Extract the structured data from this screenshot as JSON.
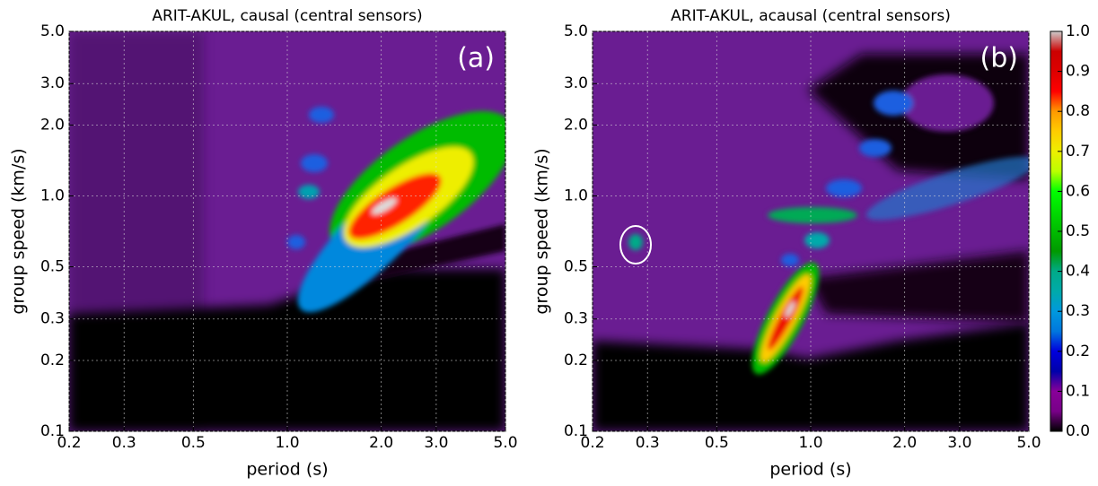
{
  "chart_data": [
    {
      "type": "heatmap",
      "title": "ARIT-AKUL, causal (central sensors)",
      "panel_label": "(a)",
      "xlabel": "period (s)",
      "ylabel": "group speed (km/s)",
      "xscale": "log",
      "yscale": "log",
      "grid": true,
      "xlim": [
        0.2,
        5.0
      ],
      "ylim": [
        0.1,
        5.0
      ],
      "xticks": [
        0.2,
        0.3,
        0.5,
        {
          "value": 1,
          "label": "1.0"
        },
        {
          "value": 2,
          "label": "2.0"
        },
        {
          "value": 3,
          "label": "3.0"
        },
        {
          "value": 5,
          "label": "5.0"
        }
      ],
      "yticks": [
        0.1,
        0.2,
        0.3,
        0.5,
        {
          "value": 1,
          "label": "1.0"
        },
        {
          "value": 2,
          "label": "2.0"
        },
        {
          "value": 3,
          "label": "3.0"
        },
        {
          "value": 5,
          "label": "5.0"
        }
      ]
    },
    {
      "type": "heatmap",
      "title": "ARIT-AKUL, acausal (central sensors)",
      "panel_label": "(b)",
      "xlabel": "period (s)",
      "ylabel": "group speed (km/s)",
      "xscale": "log",
      "yscale": "log",
      "grid": true,
      "xlim": [
        0.2,
        5.0
      ],
      "ylim": [
        0.1,
        5.0
      ],
      "xticks": [
        0.2,
        0.3,
        0.5,
        {
          "value": 1,
          "label": "1.0"
        },
        {
          "value": 2,
          "label": "2.0"
        },
        {
          "value": 3,
          "label": "3.0"
        },
        {
          "value": 5,
          "label": "5.0"
        }
      ],
      "yticks": [
        0.1,
        0.2,
        0.3,
        0.5,
        {
          "value": 1,
          "label": "1.0"
        },
        {
          "value": 2,
          "label": "2.0"
        },
        {
          "value": 3,
          "label": "3.0"
        },
        {
          "value": 5,
          "label": "5.0"
        }
      ],
      "colorbar": {
        "clim": [
          0,
          1
        ],
        "ticks": [
          {
            "value": 0,
            "label": "0.0"
          },
          0.1,
          0.2,
          0.3,
          0.4,
          0.5,
          0.6,
          0.7,
          0.8,
          0.9,
          {
            "value": 1,
            "label": "1.0"
          }
        ]
      }
    }
  ]
}
